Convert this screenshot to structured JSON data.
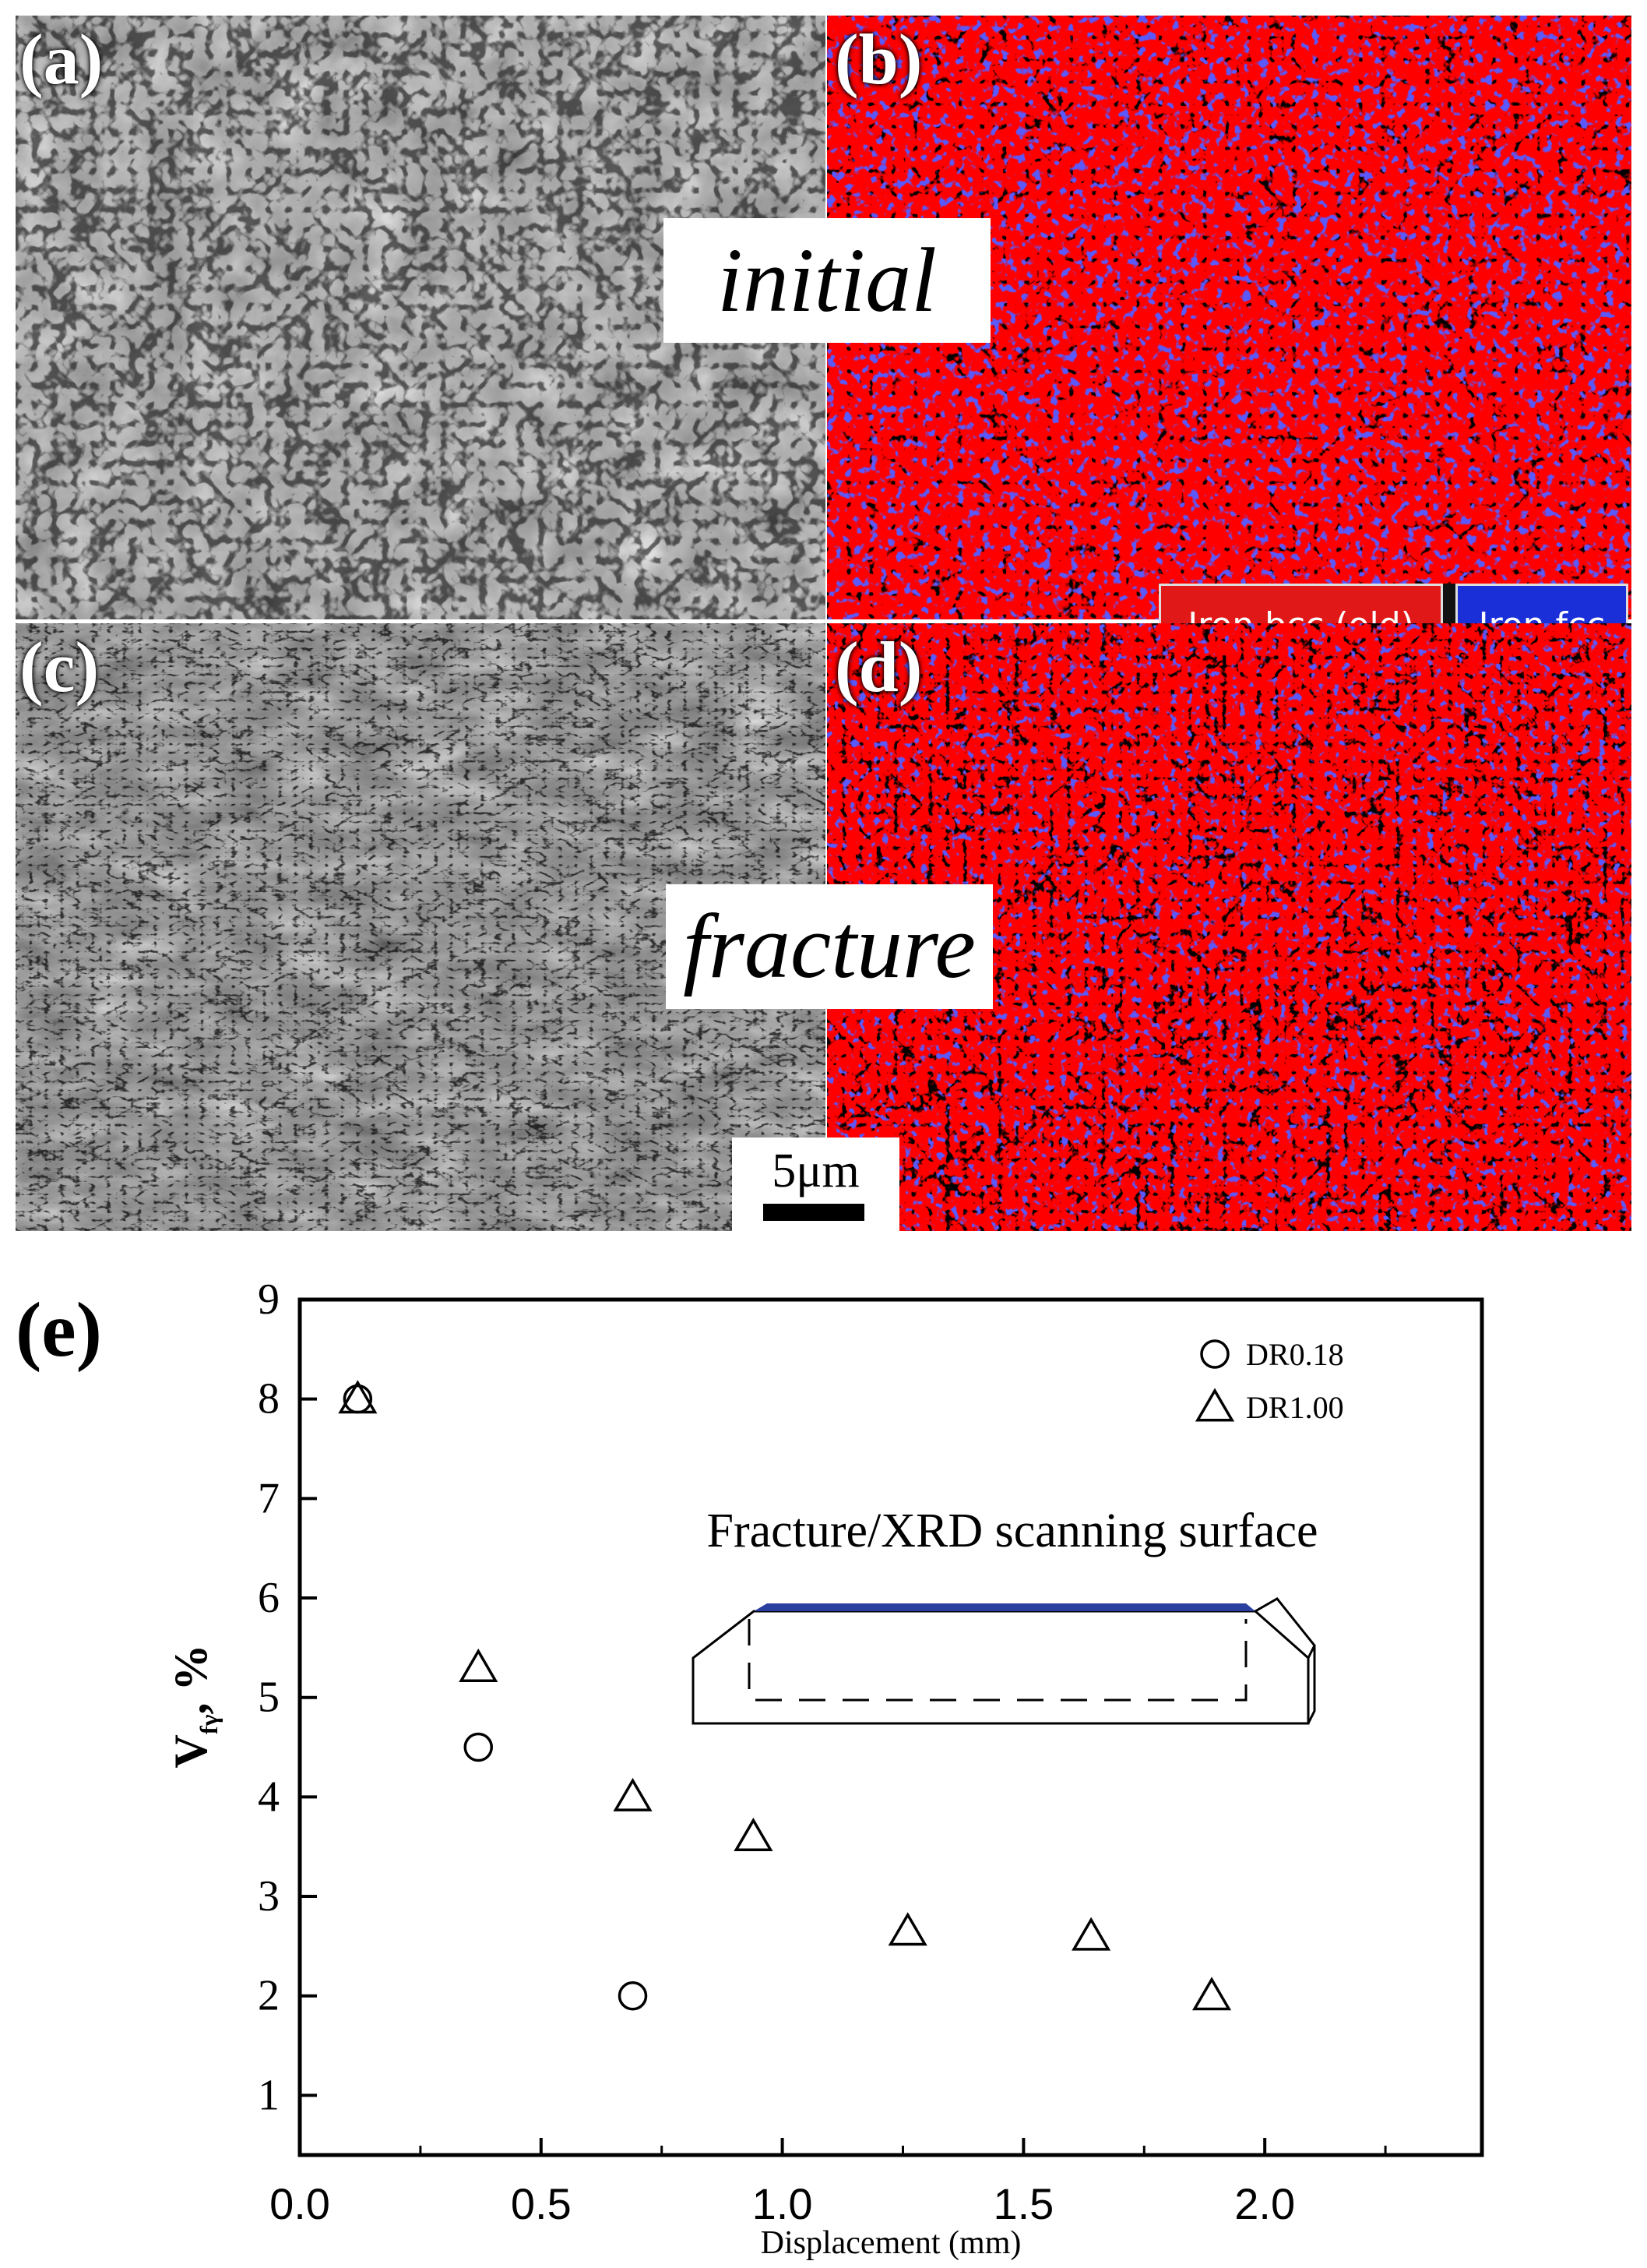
{
  "micrographs": {
    "panel_a": {
      "label": "(a)"
    },
    "panel_b": {
      "label": "(b)"
    },
    "panel_c": {
      "label": "(c)"
    },
    "panel_d": {
      "label": "(d)"
    },
    "state_initial": "initial",
    "state_fracture": "fracture",
    "scale_bar": "5μm",
    "phase_legend": [
      {
        "label": "Iron bcc (old)",
        "color": "#e01818"
      },
      {
        "label": "Iron fcc",
        "color": "#1a2fd8"
      }
    ],
    "colors": {
      "bcc": "#ff0000",
      "fcc": "#1a1aff",
      "boundary": "#000000"
    }
  },
  "chart_data": {
    "type": "scatter",
    "panel_label": "(e)",
    "xlabel": "Displacement (mm)",
    "ylabel": "V",
    "ylabel_sub": "fγ",
    "ylabel_suffix": ", %",
    "xlim": [
      0.0,
      2.45
    ],
    "ylim": [
      0.4,
      9
    ],
    "xticks": [
      "0.0",
      "0.5",
      "1.0",
      "1.5",
      "2.0"
    ],
    "yticks": [
      "1",
      "2",
      "3",
      "4",
      "5",
      "6",
      "7",
      "8",
      "9"
    ],
    "legend_position": "top-right",
    "series": [
      {
        "name": "DR0.18",
        "marker": "circle",
        "x": [
          0.12,
          0.37,
          0.69
        ],
        "y": [
          8.0,
          4.5,
          2.0
        ]
      },
      {
        "name": "DR1.00",
        "marker": "triangle",
        "x": [
          0.12,
          0.37,
          0.69,
          0.94,
          1.26,
          1.64,
          1.89
        ],
        "y": [
          8.0,
          5.3,
          4.0,
          3.6,
          2.65,
          2.6,
          2.0
        ]
      }
    ],
    "inset": {
      "title": "Fracture/XRD scanning surface",
      "scan_color": "#2a3f9e"
    }
  }
}
